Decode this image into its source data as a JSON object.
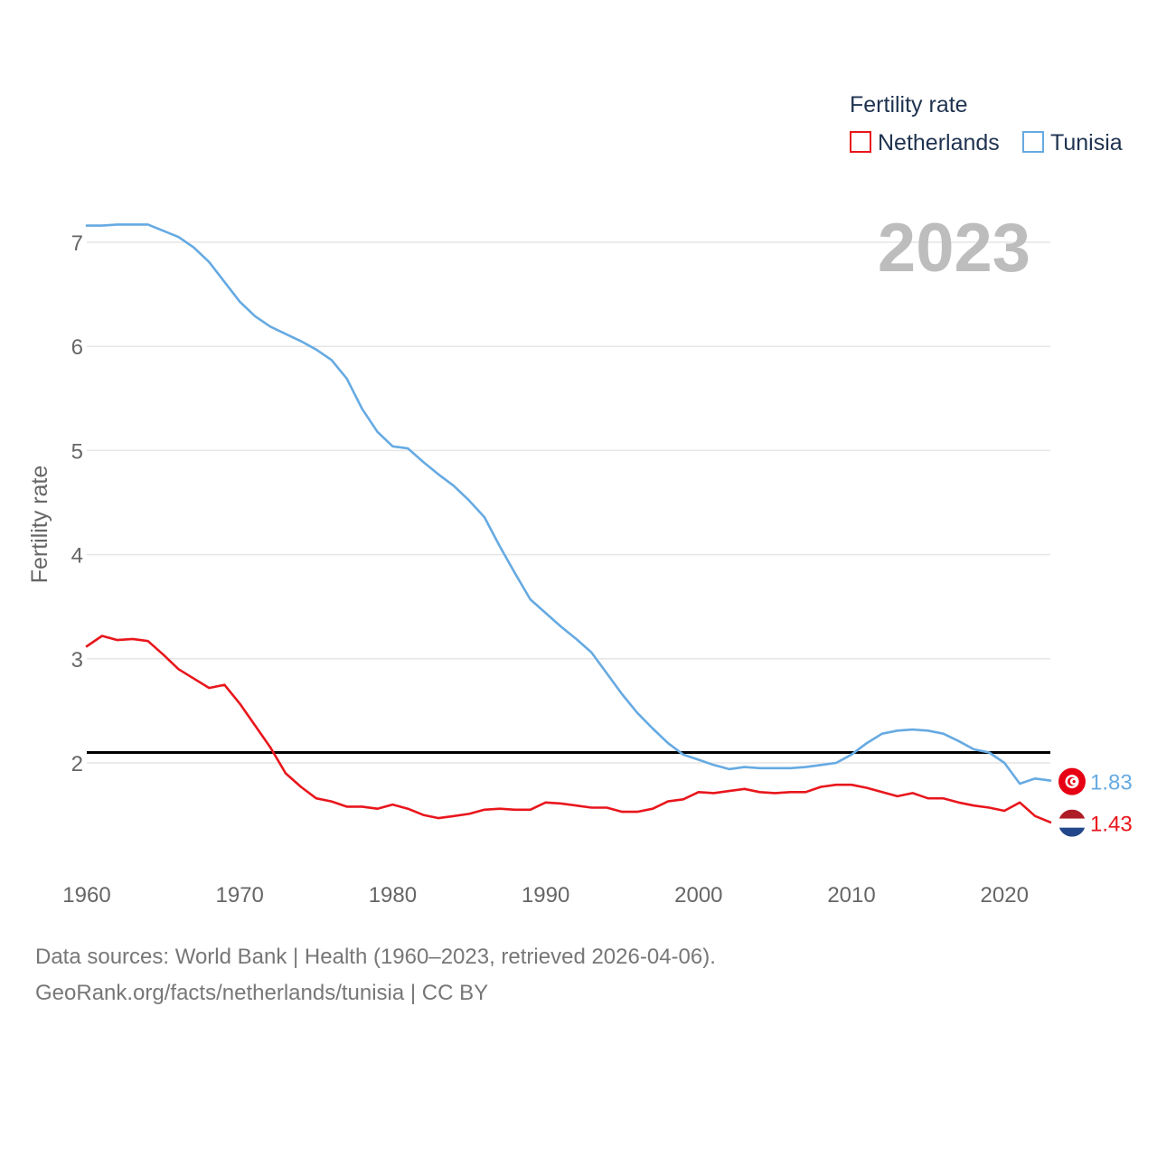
{
  "chart_data": {
    "type": "line",
    "legend_title": "Fertility rate",
    "ylabel": "Fertility rate",
    "year_label": "2023",
    "xlim": [
      1960,
      2023
    ],
    "ylim": [
      1.0,
      7.5
    ],
    "xticks": [
      1960,
      1970,
      1980,
      1990,
      2000,
      2010,
      2020
    ],
    "yticks": [
      2,
      3,
      4,
      5,
      6,
      7
    ],
    "reference_line": 2.1,
    "series": [
      {
        "name": "Netherlands",
        "color": "#e8161c",
        "end_label": "1.43",
        "flag": "netherlands-flag",
        "x": [
          1960,
          1961,
          1962,
          1963,
          1964,
          1965,
          1966,
          1967,
          1968,
          1969,
          1970,
          1971,
          1972,
          1973,
          1974,
          1975,
          1976,
          1977,
          1978,
          1979,
          1980,
          1981,
          1982,
          1983,
          1984,
          1985,
          1986,
          1987,
          1988,
          1989,
          1990,
          1991,
          1992,
          1993,
          1994,
          1995,
          1996,
          1997,
          1998,
          1999,
          2000,
          2001,
          2002,
          2003,
          2004,
          2005,
          2006,
          2007,
          2008,
          2009,
          2010,
          2011,
          2012,
          2013,
          2014,
          2015,
          2016,
          2017,
          2018,
          2019,
          2020,
          2021,
          2022,
          2023
        ],
        "values": [
          3.12,
          3.22,
          3.18,
          3.19,
          3.17,
          3.04,
          2.9,
          2.81,
          2.72,
          2.75,
          2.57,
          2.36,
          2.15,
          1.9,
          1.77,
          1.66,
          1.63,
          1.58,
          1.58,
          1.56,
          1.6,
          1.56,
          1.5,
          1.47,
          1.49,
          1.51,
          1.55,
          1.56,
          1.55,
          1.55,
          1.62,
          1.61,
          1.59,
          1.57,
          1.57,
          1.53,
          1.53,
          1.56,
          1.63,
          1.65,
          1.72,
          1.71,
          1.73,
          1.75,
          1.72,
          1.71,
          1.72,
          1.72,
          1.77,
          1.79,
          1.79,
          1.76,
          1.72,
          1.68,
          1.71,
          1.66,
          1.66,
          1.62,
          1.59,
          1.57,
          1.54,
          1.62,
          1.49,
          1.43
        ]
      },
      {
        "name": "Tunisia",
        "color": "#66aae2",
        "end_label": "1.83",
        "flag": "tunisia-flag",
        "x": [
          1960,
          1961,
          1962,
          1963,
          1964,
          1965,
          1966,
          1967,
          1968,
          1969,
          1970,
          1971,
          1972,
          1973,
          1974,
          1975,
          1976,
          1977,
          1978,
          1979,
          1980,
          1981,
          1982,
          1983,
          1984,
          1985,
          1986,
          1987,
          1988,
          1989,
          1990,
          1991,
          1992,
          1993,
          1994,
          1995,
          1996,
          1997,
          1998,
          1999,
          2000,
          2001,
          2002,
          2003,
          2004,
          2005,
          2006,
          2007,
          2008,
          2009,
          2010,
          2011,
          2012,
          2013,
          2014,
          2015,
          2016,
          2017,
          2018,
          2019,
          2020,
          2021,
          2022,
          2023
        ],
        "values": [
          7.16,
          7.16,
          7.17,
          7.17,
          7.17,
          7.11,
          7.05,
          6.95,
          6.81,
          6.62,
          6.43,
          6.29,
          6.19,
          6.12,
          6.05,
          5.97,
          5.87,
          5.69,
          5.4,
          5.18,
          5.04,
          5.02,
          4.89,
          4.77,
          4.66,
          4.52,
          4.36,
          4.08,
          3.82,
          3.57,
          3.44,
          3.31,
          3.19,
          3.06,
          2.86,
          2.66,
          2.48,
          2.33,
          2.19,
          2.08,
          2.03,
          1.98,
          1.94,
          1.96,
          1.95,
          1.95,
          1.95,
          1.96,
          1.98,
          2.0,
          2.08,
          2.19,
          2.28,
          2.31,
          2.32,
          2.31,
          2.28,
          2.21,
          2.13,
          2.1,
          2.0,
          1.8,
          1.85,
          1.83
        ]
      }
    ]
  },
  "footer": {
    "line1": "Data sources: World Bank | Health (1960–2023, retrieved 2026-04-06).",
    "line2": "GeoRank.org/facts/netherlands/tunisia | CC BY"
  }
}
